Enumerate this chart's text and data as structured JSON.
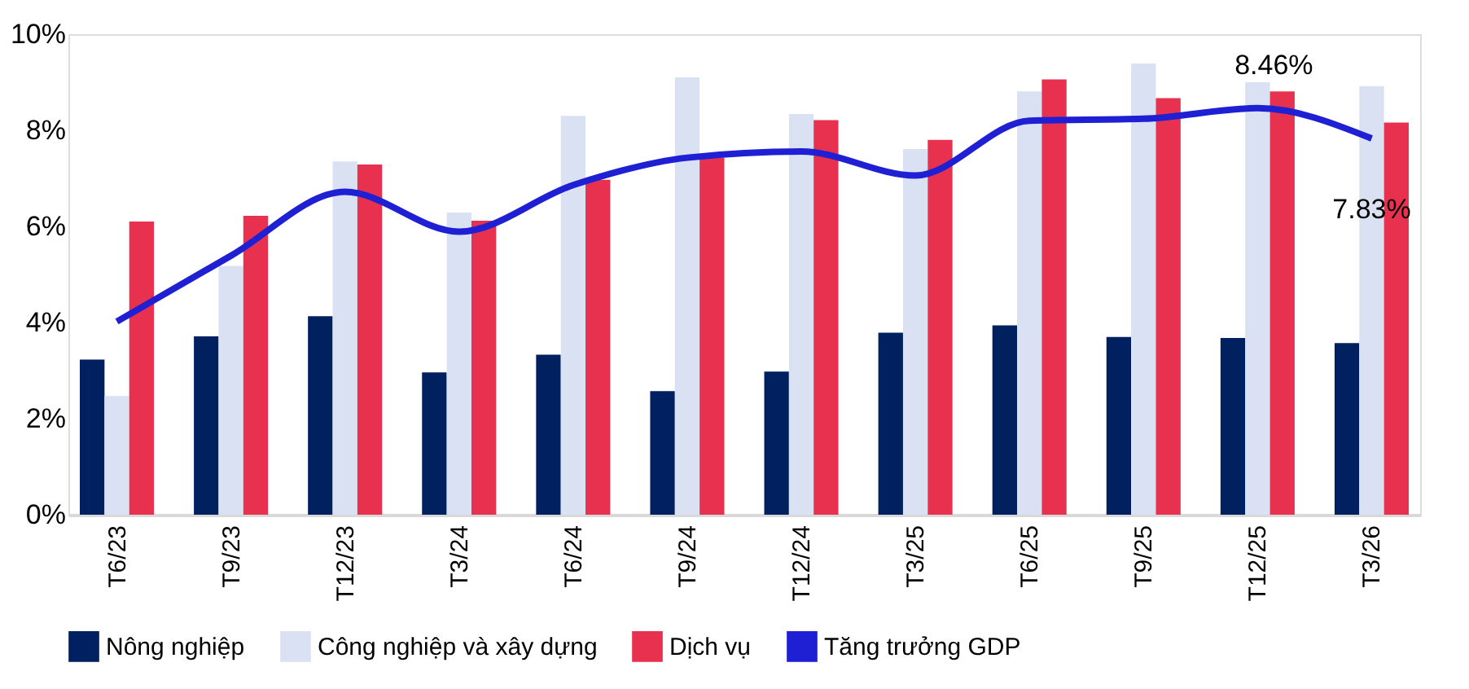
{
  "chart_data": {
    "type": "bar",
    "categories": [
      "T6/23",
      "T9/23",
      "T12/23",
      "T3/24",
      "T6/24",
      "T9/24",
      "T12/24",
      "T3/25",
      "T6/25",
      "T9/25",
      "T12/25",
      "T3/26"
    ],
    "series": [
      {
        "name": "Nông nghiệp",
        "color": "#002060",
        "values": [
          3.23,
          3.71,
          4.13,
          2.96,
          3.33,
          2.57,
          2.98,
          3.79,
          3.94,
          3.7,
          3.68,
          3.57
        ]
      },
      {
        "name": "Công nghiệp và xây dựng",
        "color": "#d9e1f2",
        "values": [
          2.47,
          5.18,
          7.35,
          6.29,
          8.3,
          9.1,
          8.34,
          7.61,
          8.81,
          9.39,
          9.0,
          8.92
        ]
      },
      {
        "name": "Dịch vụ",
        "color": "#e8304f",
        "values": [
          6.1,
          6.22,
          7.29,
          6.12,
          6.97,
          7.43,
          8.21,
          7.8,
          9.06,
          8.67,
          8.81,
          8.16
        ]
      },
      {
        "name": "Tăng trưởng GDP",
        "type": "line",
        "color": "#1f1fd4",
        "values": [
          4.02,
          5.39,
          6.72,
          5.89,
          6.86,
          7.43,
          7.56,
          7.06,
          8.2,
          8.24,
          8.46,
          7.83
        ]
      }
    ],
    "ylim": [
      0,
      10
    ],
    "yticks": [
      {
        "value": 0,
        "label": "0%"
      },
      {
        "value": 2,
        "label": "2%"
      },
      {
        "value": 4,
        "label": "4%"
      },
      {
        "value": 6,
        "label": "6%"
      },
      {
        "value": 8,
        "label": "8%"
      },
      {
        "value": 10,
        "label": "10%"
      }
    ],
    "annotations": [
      {
        "text": "8.46%",
        "x": "T12/25",
        "y": 8.46
      },
      {
        "text": "7.83%",
        "x": "T3/26",
        "y": 7.83
      }
    ],
    "grid": false,
    "legend": "bottom"
  }
}
